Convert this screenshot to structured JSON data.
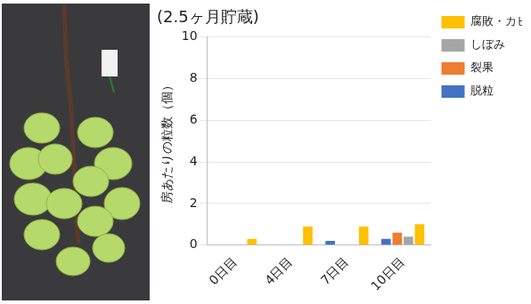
{
  "chart_data": {
    "type": "bar",
    "title": "(2.5ヶ月貯蔵)",
    "categories": [
      "0日目",
      "4日目",
      "7日目",
      "10日目"
    ],
    "y_label": "房あたりの粒数（個）",
    "series": [
      {
        "name": "脱粒",
        "color": "#4472c4",
        "values": [
          0,
          0,
          0.2,
          0.3
        ]
      },
      {
        "name": "裂果",
        "color": "#ed7d31",
        "values": [
          0,
          0,
          0,
          0.6
        ]
      },
      {
        "name": "しぼみ",
        "color": "#a5a5a5",
        "values": [
          0,
          0,
          0,
          0.4
        ]
      },
      {
        "name": "腐敗・カビ",
        "color": "#ffc000",
        "values": [
          0.3,
          0.9,
          0.9,
          1.0
        ]
      }
    ],
    "ylim": [
      0,
      10
    ],
    "yticks": [
      0,
      2,
      4,
      6,
      8,
      10
    ],
    "grid": true,
    "legend": "right"
  }
}
